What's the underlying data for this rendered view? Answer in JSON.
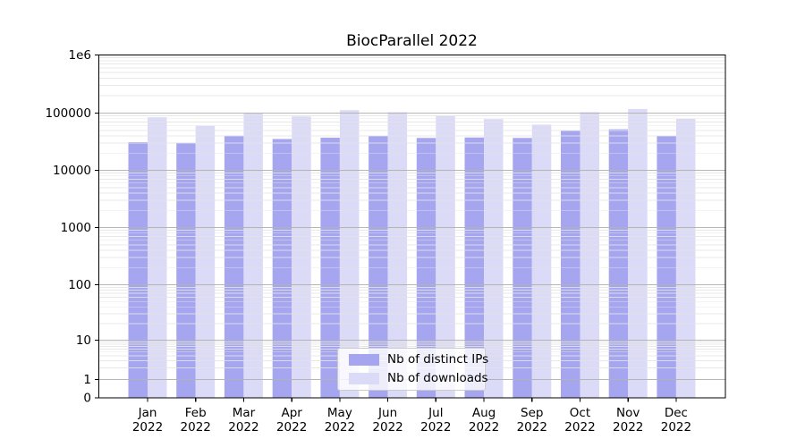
{
  "title": "BiocParallel 2022",
  "legend": {
    "items": [
      {
        "label": "Nb of distinct IPs",
        "color": "#a6a6f0"
      },
      {
        "label": "Nb of downloads",
        "color": "#dbdbf8"
      }
    ]
  },
  "colors": {
    "major_grid": "#b3b3b3",
    "minor_grid": "#e4e4e4",
    "axis": "#000000",
    "text": "#000000"
  },
  "chart_data": {
    "type": "bar",
    "title": "BiocParallel 2022",
    "categories": [
      "Jan 2022",
      "Feb 2022",
      "Mar 2022",
      "Apr 2022",
      "May 2022",
      "Jun 2022",
      "Jul 2022",
      "Aug 2022",
      "Sep 2022",
      "Oct 2022",
      "Nov 2022",
      "Dec 2022"
    ],
    "series": [
      {
        "name": "Nb of distinct IPs",
        "color": "#a6a6f0",
        "values": [
          31100,
          30300,
          40200,
          35200,
          37200,
          39900,
          36800,
          37400,
          36800,
          49000,
          52200,
          39800
        ]
      },
      {
        "name": "Nb of downloads",
        "color": "#dbdbf8",
        "values": [
          84500,
          60700,
          98900,
          87300,
          112400,
          103700,
          88300,
          78700,
          62800,
          103700,
          117800,
          79300
        ]
      }
    ],
    "yscale": "symlog",
    "ylim": [
      0,
      1000000
    ],
    "y_ticks": [
      0,
      1,
      10,
      100,
      1000,
      10000,
      100000,
      1000000
    ],
    "y_tick_labels": [
      "0",
      "1",
      "10",
      "100",
      "1000",
      "10000",
      "100000",
      "1e6"
    ],
    "grid": true,
    "minor_grid": true,
    "legend_position": "lower center"
  }
}
